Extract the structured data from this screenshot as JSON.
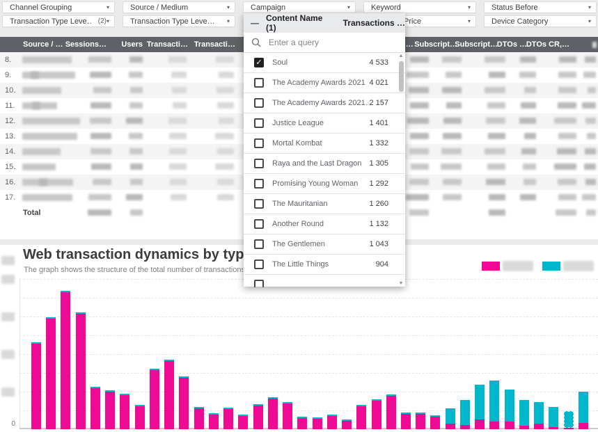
{
  "filters": {
    "row1": [
      "Channel Grouping",
      "Source / Medium",
      "Campaign",
      "Keyword",
      "Status Before"
    ],
    "row2": [
      {
        "label": "Transaction Type Leve…",
        "count": "(2)"
      },
      {
        "label": "Transaction Type Leve…",
        "count": ""
      },
      {
        "label": "Price",
        "count": ""
      },
      {
        "label": "Device Category",
        "count": ""
      }
    ]
  },
  "filter_panel": {
    "dimension_header": "Content Name (1)",
    "metric_header": "Transactions …",
    "minus_icon": "—",
    "search_placeholder": "Enter a query",
    "items": [
      {
        "label": "Soul",
        "value": "4 533",
        "checked": true
      },
      {
        "label": "The Academy Awards 2021",
        "value": "4 021",
        "checked": false
      },
      {
        "label": "The Academy Awards 2021…",
        "value": "2 157",
        "checked": false
      },
      {
        "label": "Justice League",
        "value": "1 401",
        "checked": false
      },
      {
        "label": "Mortal Kombat",
        "value": "1 332",
        "checked": false
      },
      {
        "label": "Raya and the Last Dragon",
        "value": "1 305",
        "checked": false
      },
      {
        "label": "Promising Young Woman",
        "value": "1 292",
        "checked": false
      },
      {
        "label": "The Mauritanian",
        "value": "1 260",
        "checked": false
      },
      {
        "label": "Another Round",
        "value": "1 132",
        "checked": false
      },
      {
        "label": "The Gentlemen",
        "value": "1 043",
        "checked": false
      },
      {
        "label": "The Little Things",
        "value": "904",
        "checked": false
      },
      {
        "label": "",
        "value": "",
        "checked": false,
        "partial": true
      }
    ]
  },
  "table": {
    "columns": [
      "Source / …",
      "Sessions…",
      "Users",
      "Transacti…",
      "Transacti…",
      "d…",
      "Subscript…",
      "Subscript…",
      "DTOs …",
      "DTOs CR,…"
    ],
    "row_numbers": [
      "8.",
      "9.",
      "10.",
      "11.",
      "12.",
      "13.",
      "14.",
      "15.",
      "16.",
      "17."
    ],
    "total_label": "Total",
    "cells_redacted": true
  },
  "chart": {
    "title": "Web transaction dynamics by type",
    "subtitle": "The graph shows the structure of the total number of transactions by th",
    "y_zero_label": "0",
    "legend_labels_redacted": true
  },
  "chart_data": {
    "type": "bar",
    "stacked": true,
    "n_bars": 38,
    "x_tick_labels_visible": false,
    "y_tick_labels_visible": [
      "0"
    ],
    "y_axis_other_labels": "redacted-blurred",
    "ylim": [
      0,
      240
    ],
    "unit": "pixel-estimated (axis labels blurred in source)",
    "series": [
      {
        "name": "pink",
        "color": "#EF0A96",
        "values": [
          123,
          159,
          197,
          166,
          59,
          54,
          49,
          33,
          85,
          98,
          74,
          30,
          21,
          29,
          19,
          34,
          44,
          37,
          16,
          15,
          19,
          12,
          33,
          41,
          48,
          22,
          22,
          18,
          8,
          6,
          14,
          11,
          11,
          5,
          8,
          3,
          2,
          9
        ]
      },
      {
        "name": "cyan",
        "color": "#00B7CB",
        "values": [
          2,
          2,
          2,
          2,
          2,
          2,
          2,
          2,
          2,
          2,
          2,
          2,
          2,
          2,
          2,
          2,
          2,
          2,
          2,
          2,
          2,
          2,
          2,
          2,
          2,
          2,
          2,
          2,
          22,
          36,
          50,
          59,
          46,
          37,
          31,
          29,
          24,
          45
        ]
      }
    ],
    "dashed_bar_index": 36,
    "legend": [
      {
        "swatch_color": "#EF0A96",
        "label": ""
      },
      {
        "swatch_color": "#00B7CB",
        "label": ""
      }
    ]
  },
  "colors": {
    "pink": "#EF0A96",
    "cyan": "#00B7CB",
    "table_header_bg": "#5e6165",
    "panel_header_bg": "#e9eaeb",
    "page_bg": "#ebebeb"
  }
}
